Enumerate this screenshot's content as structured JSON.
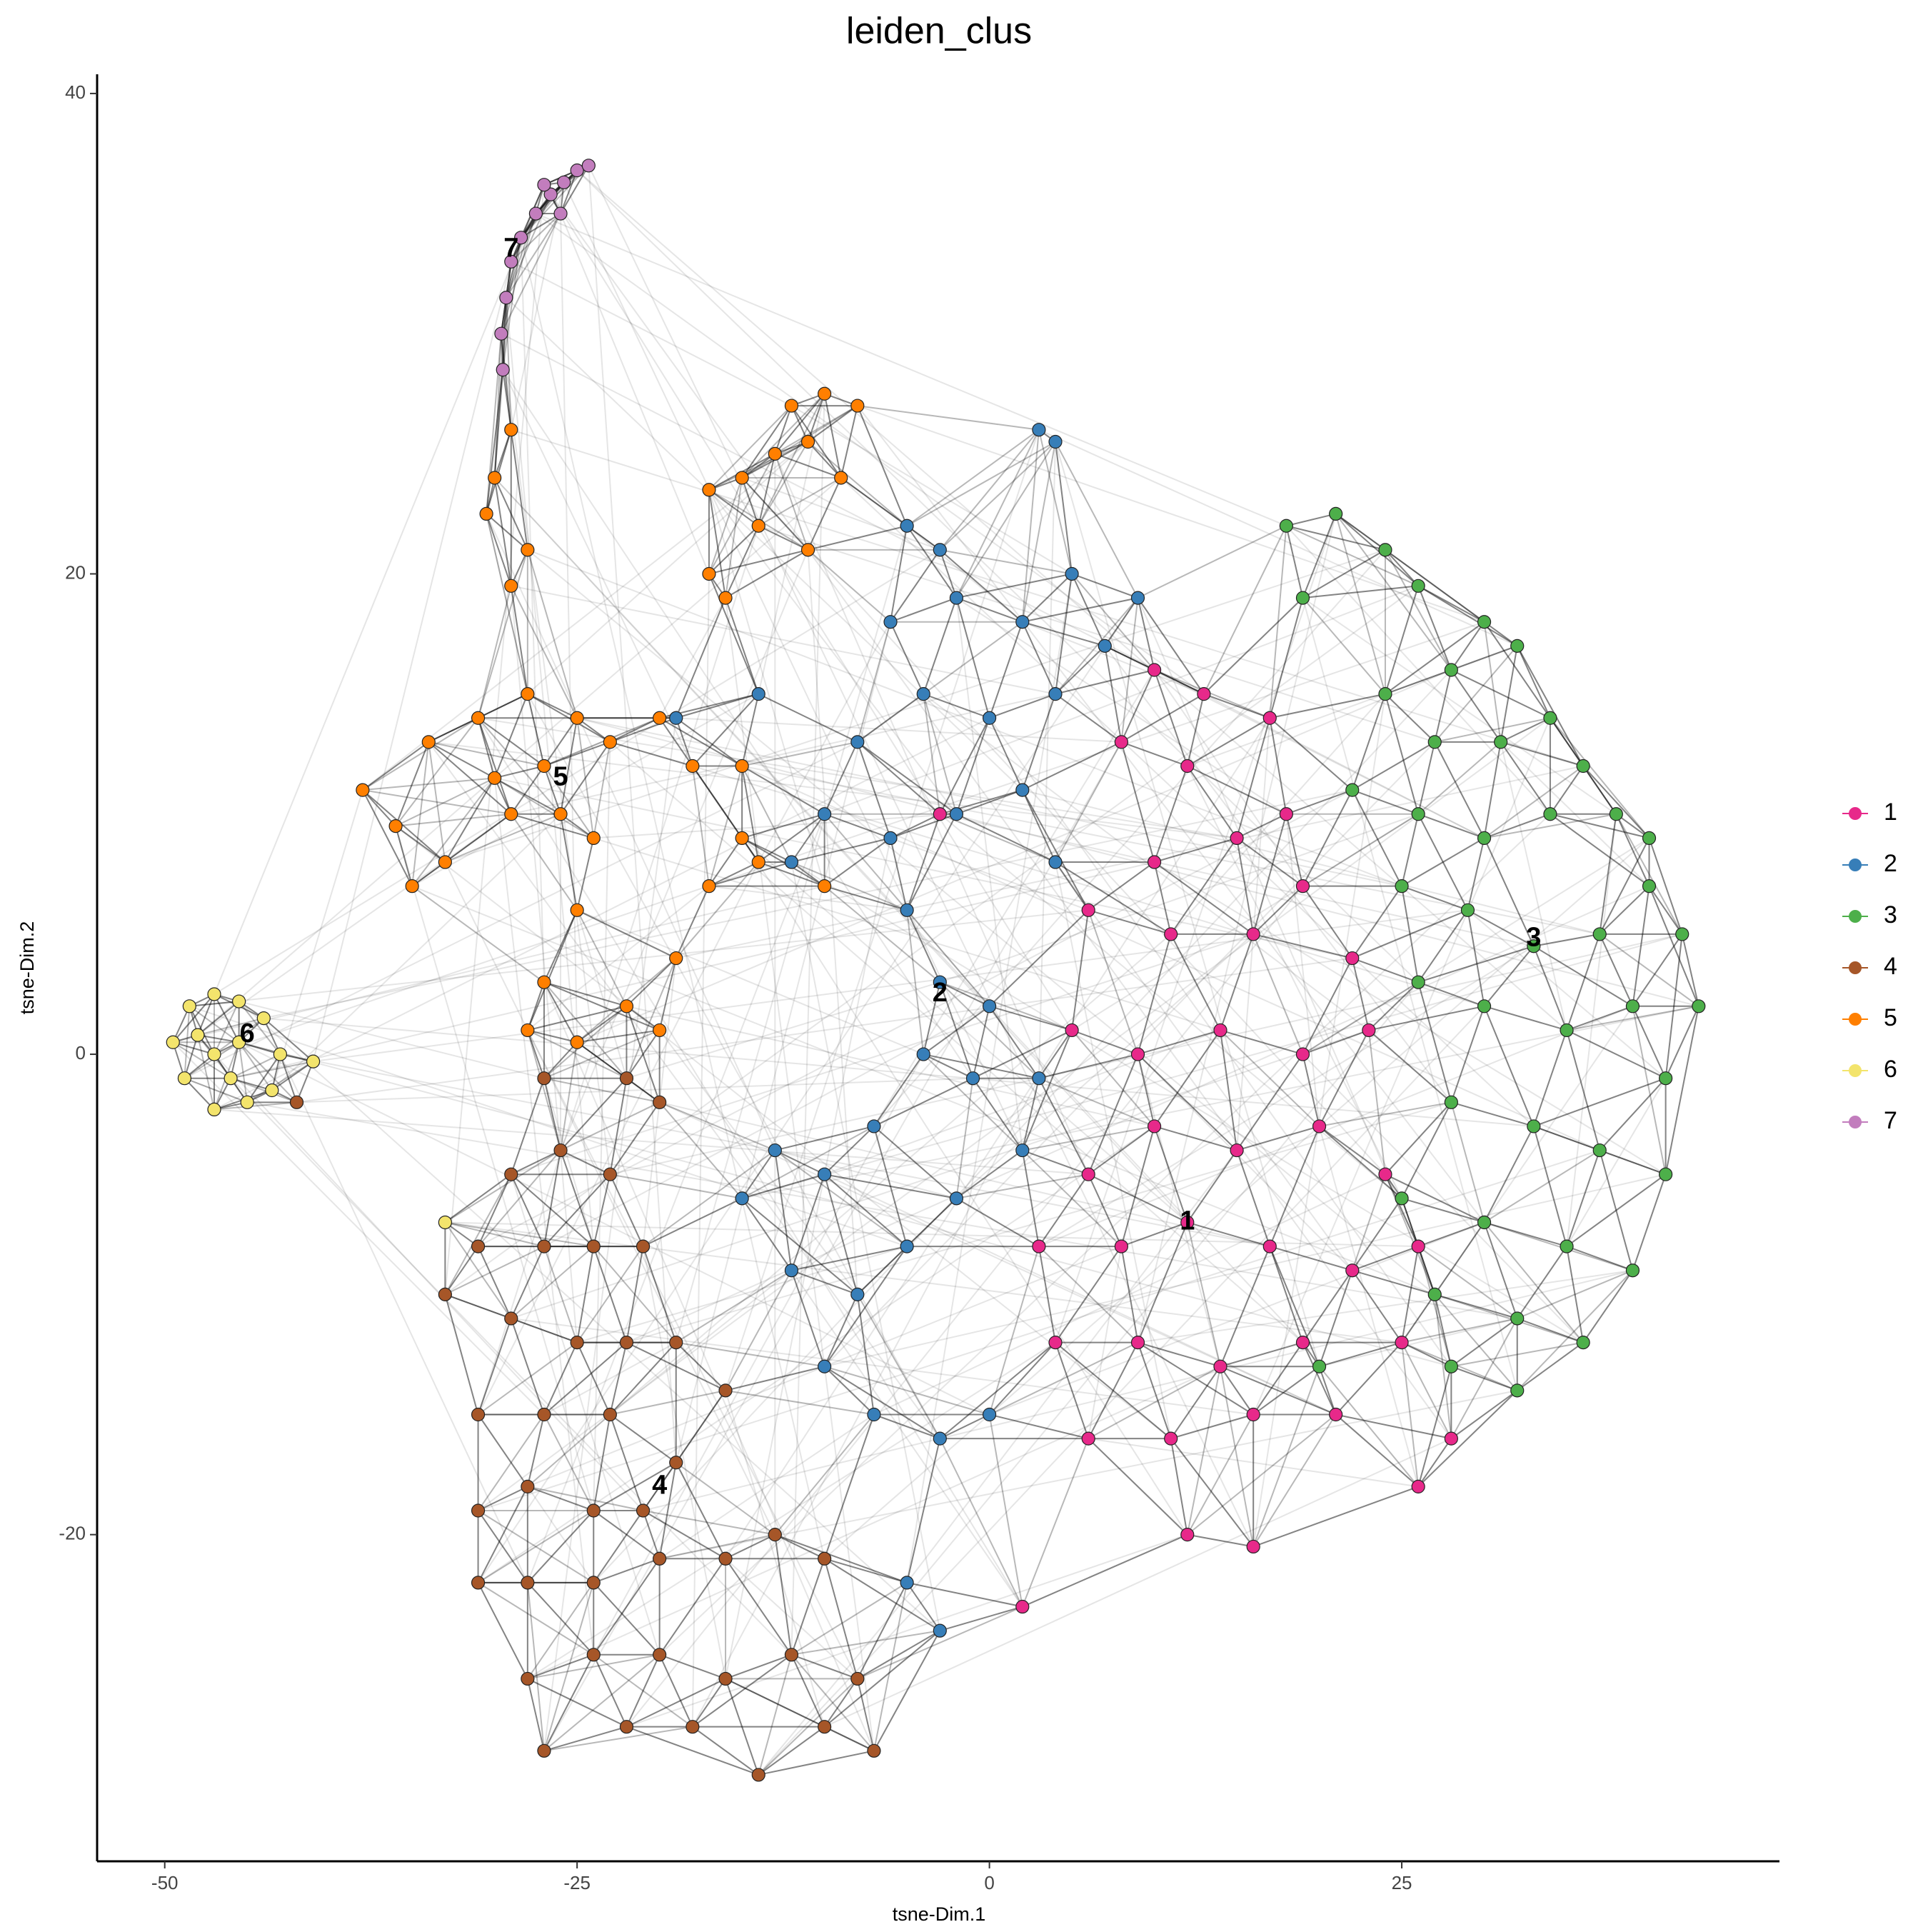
{
  "chart_data": {
    "type": "scatter",
    "title": "leiden_clus",
    "x_label": "tsne-Dim.1",
    "y_label": "tsne-Dim.2",
    "xlim": [
      -54.1,
      47.9
    ],
    "ylim": [
      -33.6,
      40.8
    ],
    "xticks": [
      -50,
      -25,
      0,
      25
    ],
    "yticks": [
      -20,
      0,
      20,
      40
    ],
    "grid": false,
    "legend": "right",
    "series": [
      {
        "name": "1",
        "color": "#E7298A",
        "x": [
          10,
          13,
          8,
          12,
          17,
          15,
          10,
          18,
          6,
          11,
          16,
          19,
          22,
          5,
          9,
          14,
          19,
          23,
          6,
          10,
          15,
          20,
          24,
          3,
          8,
          12,
          17,
          22,
          26,
          4,
          9,
          14,
          19,
          25,
          6,
          11,
          16,
          21,
          28,
          12,
          16,
          26,
          2,
          -3
        ],
        "values": [
          16,
          15,
          13,
          12,
          14,
          9,
          8,
          10,
          6,
          5,
          5,
          7,
          4,
          1,
          0,
          1,
          0,
          1,
          -5,
          -3,
          -4,
          -3,
          -5,
          -8,
          -8,
          -7,
          -8,
          -9,
          -8,
          -12,
          -12,
          -13,
          -12,
          -12,
          -16,
          -16,
          -15,
          -15,
          -16,
          -20,
          -20.5,
          -18,
          -23,
          10
        ]
      },
      {
        "name": "2",
        "color": "#377EB8",
        "x": [
          -5,
          -3,
          -6,
          -2,
          2,
          5,
          7,
          9,
          4,
          0,
          -4,
          -8,
          -10,
          -12,
          -6,
          -2,
          2,
          4,
          -5,
          -3,
          0,
          -1,
          -4,
          -7,
          -10,
          -13,
          -15,
          -12,
          -8,
          -5,
          -2,
          2,
          3,
          -10,
          -7,
          -3,
          0,
          -5,
          -3,
          3,
          4,
          -19,
          -14
        ],
        "values": [
          22,
          21,
          18,
          19,
          18,
          20,
          17,
          19,
          15,
          14,
          15,
          13,
          10,
          8,
          9,
          10,
          11,
          8,
          6,
          3,
          2,
          -1,
          0,
          -3,
          -5,
          -4,
          -6,
          -9,
          -10,
          -8,
          -6,
          -4,
          -1,
          -13,
          -15,
          -16,
          -15,
          -22,
          -24,
          26,
          25.5,
          14,
          15
        ]
      },
      {
        "name": "3",
        "color": "#4DAF4A",
        "x": [
          18,
          21,
          24,
          19,
          26,
          30,
          28,
          32,
          24,
          27,
          31,
          34,
          36,
          22,
          26,
          30,
          34,
          38,
          40,
          25,
          29,
          33,
          37,
          40,
          42,
          26,
          30,
          35,
          39,
          43,
          41,
          28,
          33,
          37,
          41,
          25,
          30,
          35,
          39,
          27,
          32,
          36,
          28,
          32,
          20
        ],
        "values": [
          22,
          22.5,
          21,
          19,
          19.5,
          18,
          16,
          17,
          15,
          13,
          13,
          14,
          12,
          11,
          10,
          9,
          10,
          10,
          9,
          7,
          6,
          4.5,
          5,
          7,
          5,
          3,
          2,
          1,
          2,
          2,
          -1,
          -2,
          -3,
          -4,
          -5,
          -6,
          -7,
          -8,
          -9,
          -10,
          -11,
          -12,
          -13,
          -14,
          -13
        ]
      },
      {
        "name": "4",
        "color": "#A65628",
        "x": [
          -29,
          -26,
          -23,
          -20,
          -22,
          -31,
          -27,
          -24,
          -21,
          -33,
          -29,
          -25,
          -22,
          -19,
          -31,
          -27,
          -23,
          -19,
          -16,
          -31,
          -28,
          -24,
          -21,
          -31,
          -28,
          -24,
          -20,
          -16,
          -13,
          -10,
          -28,
          -24,
          -20,
          -16,
          -12,
          -8,
          -27,
          -22,
          -18,
          -14,
          -10,
          -7,
          -27,
          -42
        ],
        "values": [
          -5,
          -4,
          -5,
          -2,
          -1,
          -8,
          -8,
          -8,
          -8,
          -10,
          -11,
          -12,
          -12,
          -12,
          -15,
          -15,
          -15,
          -17,
          -14,
          -19,
          -18,
          -19,
          -19,
          -22,
          -22,
          -22,
          -21,
          -21,
          -20,
          -21,
          -26,
          -25,
          -25,
          -26,
          -25,
          -26,
          -29,
          -28,
          -28,
          -30,
          -28,
          -29,
          -1,
          -2
        ]
      },
      {
        "name": "5",
        "color": "#FF7F00",
        "x": [
          -12,
          -10,
          -8,
          -13,
          -11,
          -9,
          -15,
          -17,
          -14,
          -11,
          -17,
          -16,
          -29,
          -30,
          -30.5,
          -28,
          -29,
          -38,
          -36,
          -34,
          -31,
          -28,
          -25,
          -23,
          -27,
          -26,
          -24,
          -29,
          -33,
          -35,
          -30,
          -20,
          -18,
          -15,
          -17,
          -19,
          -25,
          -27,
          -28,
          -25,
          -22,
          -20,
          -15,
          -14,
          -10
        ],
        "values": [
          27,
          27.5,
          27,
          25,
          25.5,
          24,
          24,
          23.5,
          22,
          21,
          20,
          19,
          26,
          24,
          22.5,
          21,
          19.5,
          11,
          9.5,
          13,
          14,
          15,
          14,
          13,
          12,
          10,
          9,
          10,
          8,
          7,
          11.5,
          14,
          12,
          9,
          7,
          4,
          6,
          3,
          1,
          0.5,
          2,
          1,
          12,
          8,
          7
        ]
      },
      {
        "name": "6",
        "color": "#F3E46C",
        "x": [
          -49.5,
          -48.5,
          -47,
          -45.5,
          -44,
          -43,
          -43.5,
          -45,
          -47,
          -48.8,
          -47,
          -45.5,
          -46,
          -48,
          -41,
          -33
        ],
        "values": [
          0.5,
          2,
          2.5,
          2.2,
          1.5,
          0,
          -1.5,
          -2,
          -2.3,
          -1,
          0,
          0.5,
          -1,
          0.8,
          -0.3,
          -7
        ]
      },
      {
        "name": "7",
        "color": "#C27DBD",
        "x": [
          -29.5,
          -29.6,
          -29.3,
          -29,
          -28.4,
          -27.5,
          -26.6,
          -25.8,
          -25,
          -24.3,
          -26,
          -27
        ],
        "values": [
          28.5,
          30,
          31.5,
          33,
          34,
          35,
          35.8,
          36.3,
          36.8,
          37,
          35,
          36.2
        ]
      }
    ],
    "cluster_labels": [
      {
        "text": "1",
        "x": 12,
        "y": -7
      },
      {
        "text": "2",
        "x": -3,
        "y": 2.5
      },
      {
        "text": "3",
        "x": 33,
        "y": 4.8
      },
      {
        "text": "4",
        "x": -20,
        "y": -18
      },
      {
        "text": "5",
        "x": -26,
        "y": 11.5
      },
      {
        "text": "6",
        "x": -45,
        "y": 0.8
      },
      {
        "text": "7",
        "x": -29,
        "y": 33.5
      }
    ]
  }
}
